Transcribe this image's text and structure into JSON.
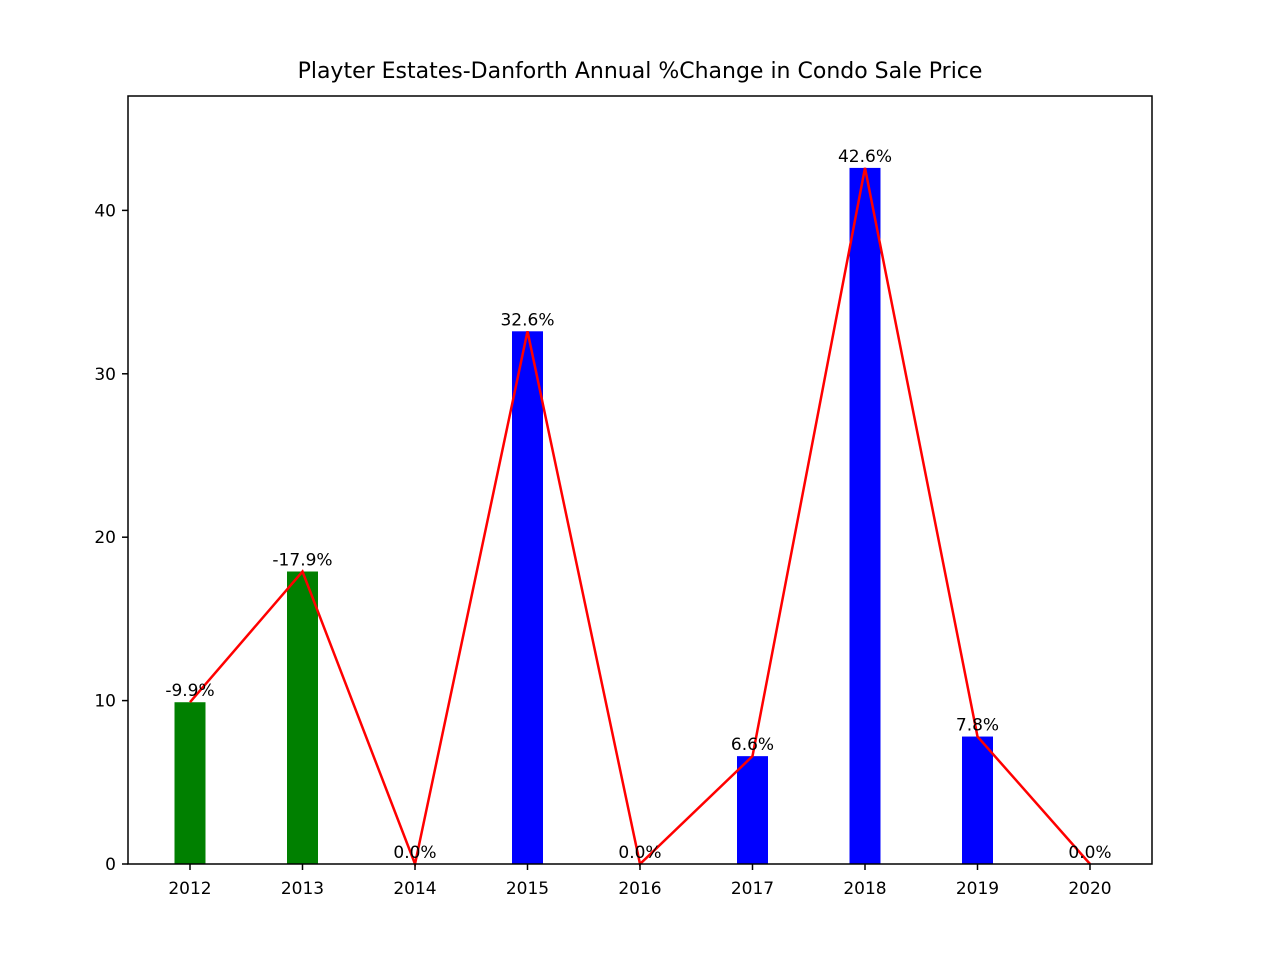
{
  "chart_data": {
    "type": "bar",
    "title": "Playter Estates-Danforth Annual %Change in Condo Sale Price",
    "xlabel": "",
    "ylabel": "",
    "categories": [
      "2012",
      "2013",
      "2014",
      "2015",
      "2016",
      "2017",
      "2018",
      "2019",
      "2020"
    ],
    "values": [
      9.9,
      17.9,
      0.0,
      32.6,
      0.0,
      6.6,
      42.6,
      7.8,
      0.0
    ],
    "data_labels": [
      "-9.9%",
      "-17.9%",
      "0.0%",
      "32.6%",
      "0.0%",
      "6.6%",
      "42.6%",
      "7.8%",
      "0.0%"
    ],
    "bar_colors": [
      "#008000",
      "#008000",
      "#0000ff",
      "#0000ff",
      "#0000ff",
      "#0000ff",
      "#0000ff",
      "#0000ff",
      "#0000ff"
    ],
    "line_color": "#ff0000",
    "ylim": [
      0,
      47
    ],
    "yticks": [
      0,
      10,
      20,
      30,
      40
    ],
    "grid": false,
    "legend": "none",
    "overlay_line": true
  }
}
